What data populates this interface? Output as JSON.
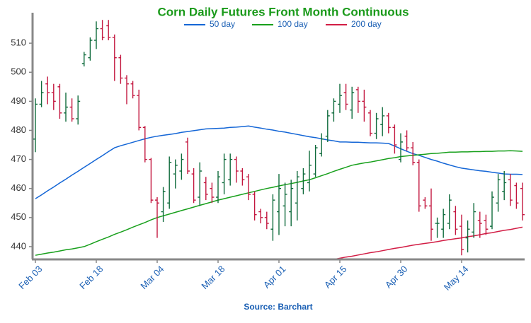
{
  "chart_data": {
    "type": "ohlc",
    "title": "Corn Daily Futures Front Month Continuous",
    "source": "Source: Barchart",
    "categories": [
      "Feb 03",
      null,
      null,
      null,
      null,
      null,
      null,
      null,
      null,
      null,
      "Feb 18",
      null,
      null,
      null,
      null,
      null,
      null,
      null,
      null,
      null,
      "Mar 04",
      null,
      null,
      null,
      null,
      null,
      null,
      null,
      null,
      null,
      "Mar 18",
      null,
      null,
      null,
      null,
      null,
      null,
      null,
      null,
      null,
      "Apr 01",
      null,
      null,
      null,
      null,
      null,
      null,
      null,
      null,
      null,
      "Apr 15",
      null,
      null,
      null,
      null,
      null,
      null,
      null,
      null,
      null,
      "Apr 30",
      null,
      null,
      null,
      null,
      null,
      null,
      null,
      null,
      null,
      "May 14",
      null,
      null,
      null,
      null,
      null,
      null,
      null,
      null,
      null,
      null
    ],
    "up_color": "#0f6b3c",
    "down_color": "#c3173f",
    "open": [
      477,
      489,
      496,
      493,
      495,
      486,
      488,
      484,
      503,
      505,
      511,
      515,
      516,
      512,
      505,
      498,
      496,
      492,
      481,
      470,
      456,
      452,
      455,
      465,
      466,
      476,
      465,
      457,
      462,
      460,
      457,
      462,
      463,
      470,
      466,
      464,
      458,
      452,
      450,
      446,
      452,
      454,
      452,
      455,
      460,
      462,
      465,
      472,
      478,
      486,
      489,
      493,
      487,
      494,
      490,
      486,
      479,
      482,
      485,
      481,
      470,
      478,
      474,
      469,
      456,
      454,
      448,
      446,
      448,
      452,
      447,
      443,
      445,
      449,
      449,
      447,
      455,
      459,
      463,
      461,
      460
    ],
    "high": [
      491,
      497,
      498.5,
      496,
      496,
      493,
      491,
      492,
      507,
      512,
      517.5,
      518,
      518,
      513,
      506,
      499,
      497,
      494,
      481.5,
      470.5,
      457,
      460.5,
      471,
      470,
      472,
      477.5,
      467,
      469,
      464,
      462,
      466,
      472,
      472,
      471,
      467,
      465,
      459,
      453,
      452,
      458,
      465,
      462,
      463,
      466,
      467,
      473,
      475,
      479,
      487,
      491,
      496,
      496,
      495,
      495,
      494,
      487,
      486,
      488,
      486,
      482,
      479,
      480,
      476,
      470,
      457,
      460,
      450,
      453,
      458,
      454,
      451,
      449,
      455,
      452,
      451,
      459,
      465,
      466,
      465,
      462,
      462
    ],
    "low": [
      472.5,
      488,
      489,
      487,
      484,
      483,
      483,
      482,
      502,
      504,
      508,
      511,
      511,
      497,
      496,
      489,
      491,
      480,
      469,
      455,
      443,
      448.5,
      453,
      460,
      463,
      465,
      455,
      454,
      456,
      455,
      455,
      458,
      461,
      462,
      461,
      456,
      449,
      448,
      446,
      442,
      444,
      447,
      447,
      449,
      458,
      459,
      464,
      471,
      476,
      483,
      486,
      487,
      484,
      486,
      483,
      478,
      477,
      478,
      479,
      472,
      469,
      473,
      468,
      452,
      453,
      442,
      443,
      443,
      446,
      444,
      437,
      438,
      443,
      443,
      444,
      446,
      452,
      456,
      454,
      453,
      449
    ],
    "close": [
      489,
      493,
      493,
      490,
      486,
      488,
      484,
      490,
      506,
      511,
      515,
      512,
      512,
      505,
      498,
      496,
      492,
      481,
      470,
      456,
      455,
      459,
      469,
      468,
      470,
      466,
      456,
      466,
      458,
      457,
      464,
      470,
      470,
      466,
      463,
      458,
      451,
      450,
      448,
      456,
      460,
      458,
      460,
      464,
      465,
      468,
      474,
      477,
      485,
      490,
      492,
      489,
      493,
      490,
      488,
      479,
      484,
      485,
      481,
      475,
      476,
      474,
      469,
      454,
      454,
      446,
      448,
      451,
      456,
      446,
      439,
      446,
      452,
      448,
      446,
      457,
      463,
      462,
      456,
      455,
      451
    ],
    "series": [
      {
        "name": "50 day",
        "color": "#1466d6",
        "values": [
          456.5,
          457.8,
          459.2,
          460.5,
          461.9,
          463.2,
          464.6,
          465.9,
          467.3,
          468.6,
          470,
          471.3,
          472.7,
          474,
          474.7,
          475.3,
          475.9,
          476.5,
          477.1,
          477.6,
          478,
          478.3,
          478.6,
          478.9,
          479.3,
          479.6,
          479.9,
          480.2,
          480.5,
          480.6,
          480.7,
          480.8,
          481,
          481.1,
          481.3,
          481.5,
          481.1,
          480.8,
          480.4,
          480.1,
          479.7,
          479.4,
          479,
          478.6,
          478.2,
          477.8,
          477.5,
          477.1,
          476.7,
          476.4,
          476,
          476,
          475.9,
          475.9,
          475.8,
          475.7,
          475.7,
          475.6,
          475.5,
          474.6,
          473.7,
          472.8,
          472,
          471.4,
          470.7,
          470,
          469.4,
          468.7,
          468.1,
          467.5,
          467,
          466.7,
          466.4,
          466.1,
          465.9,
          465.6,
          465.3,
          465,
          464.9,
          464.9,
          464.8
        ]
      },
      {
        "name": "100 day",
        "color": "#18a01c",
        "values": [
          437,
          437.4,
          437.8,
          438.1,
          438.5,
          438.9,
          439.2,
          439.6,
          440,
          440.8,
          441.7,
          442.5,
          443.3,
          444.2,
          445,
          445.8,
          446.7,
          447.5,
          448.3,
          449.2,
          450,
          450.6,
          451.2,
          451.8,
          452.4,
          453,
          453.6,
          454.2,
          454.8,
          455.4,
          456,
          456.5,
          457,
          457.5,
          458,
          458.5,
          459,
          459.5,
          460,
          460.4,
          460.9,
          461.3,
          461.7,
          462.1,
          462.6,
          463,
          463.7,
          464.4,
          465.1,
          465.9,
          466.6,
          467.3,
          468,
          468.4,
          468.8,
          469.1,
          469.5,
          469.9,
          470.3,
          470.6,
          471,
          471.2,
          471.4,
          471.6,
          471.8,
          472,
          472.1,
          472.3,
          472.5,
          472.5,
          472.6,
          472.6,
          472.7,
          472.7,
          472.8,
          472.8,
          472.9,
          472.9,
          473,
          472.9,
          472.8
        ]
      },
      {
        "name": "200 day",
        "color": "#d21d45",
        "values": [
          null,
          null,
          null,
          null,
          null,
          null,
          null,
          null,
          null,
          null,
          null,
          null,
          null,
          null,
          null,
          null,
          null,
          null,
          null,
          null,
          null,
          null,
          null,
          null,
          null,
          null,
          null,
          null,
          null,
          null,
          null,
          null,
          null,
          null,
          null,
          null,
          null,
          null,
          null,
          null,
          null,
          null,
          null,
          null,
          null,
          null,
          434.5,
          434.9,
          435.2,
          435.6,
          436,
          436.4,
          436.7,
          437.1,
          437.5,
          437.9,
          438.2,
          438.6,
          439,
          439.4,
          439.7,
          440.1,
          440.5,
          440.8,
          441.1,
          441.4,
          441.7,
          442.1,
          442.4,
          442.7,
          443,
          443.4,
          443.7,
          444.1,
          444.5,
          444.8,
          445.2,
          445.6,
          445.9,
          446.3,
          446.7
        ]
      }
    ],
    "ylim": [
      435.6,
      520
    ],
    "yticks": [
      440,
      450,
      460,
      470,
      480,
      490,
      500,
      510
    ]
  }
}
